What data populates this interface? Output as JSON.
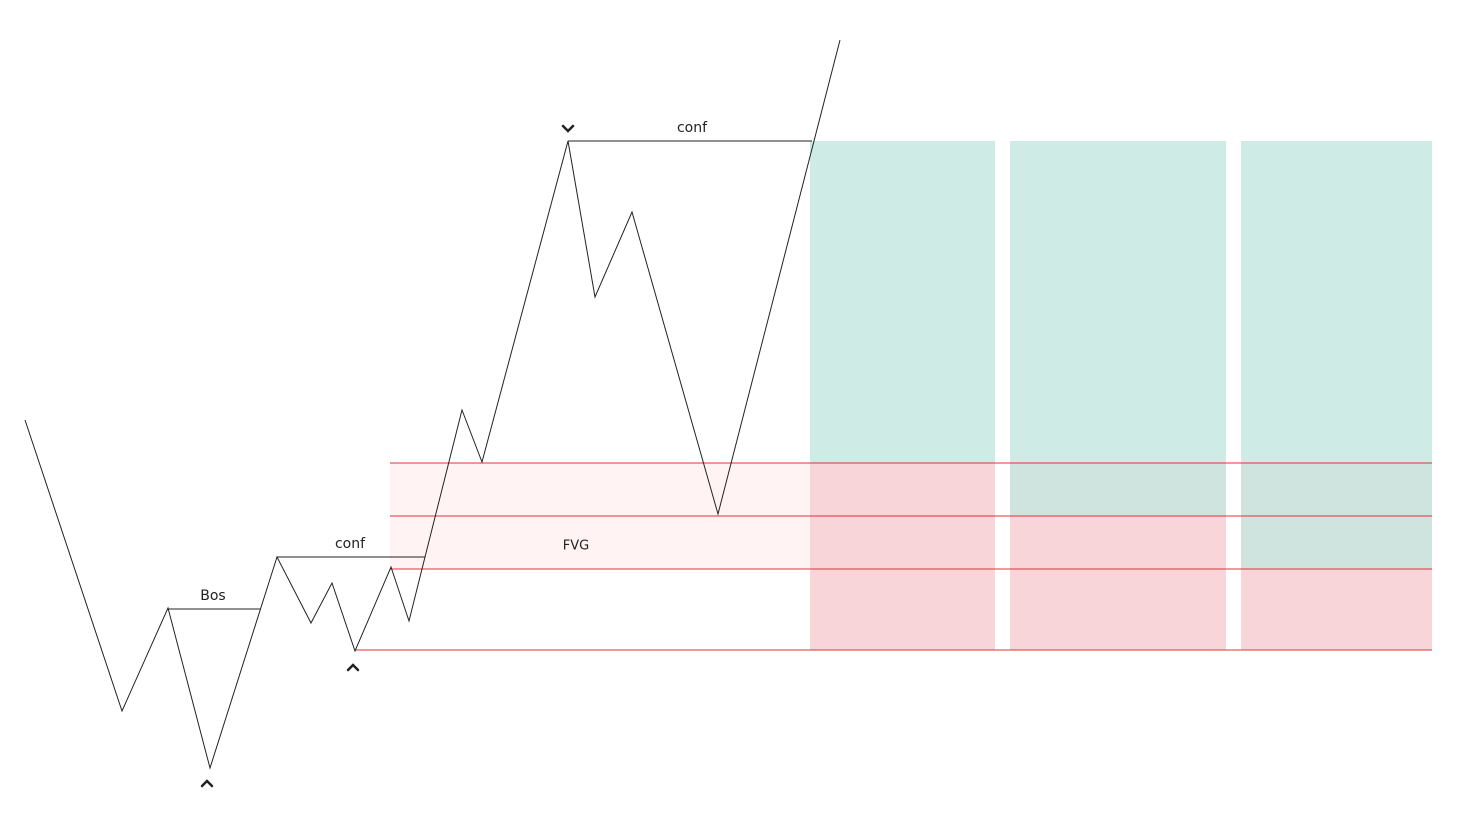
{
  "annotations": [
    "Bos",
    "conf",
    "conf",
    "FVG"
  ]
}
